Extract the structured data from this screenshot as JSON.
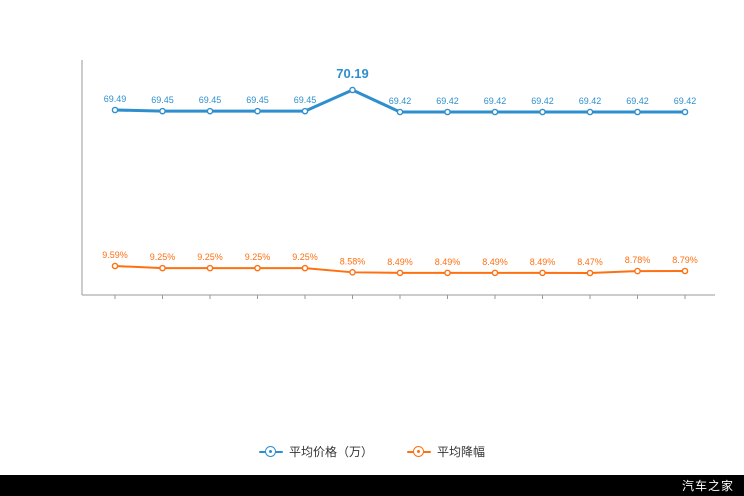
{
  "chart_data": {
    "type": "line",
    "title": "",
    "xlabel": "",
    "ylabel": "",
    "grid": false,
    "legend_position": "bottom",
    "series": [
      {
        "name": "平均价格（万）",
        "color": "#2f8fce",
        "values": [
          69.49,
          69.45,
          69.45,
          69.45,
          69.45,
          70.19,
          69.42,
          69.42,
          69.42,
          69.42,
          69.42,
          69.42,
          69.42
        ],
        "labels": [
          "69.49",
          "69.45",
          "69.45",
          "69.45",
          "69.45",
          "70.19",
          "69.42",
          "69.42",
          "69.42",
          "69.42",
          "69.42",
          "69.42",
          "69.42"
        ]
      },
      {
        "name": "平均降幅",
        "color": "#ff7011",
        "values": [
          9.59,
          9.25,
          9.25,
          9.25,
          9.25,
          8.58,
          8.49,
          8.49,
          8.49,
          8.49,
          8.47,
          8.78,
          8.79
        ],
        "labels": [
          "9.59%",
          "9.25%",
          "9.25%",
          "9.25%",
          "9.25%",
          "8.58%",
          "8.49%",
          "8.49%",
          "8.49%",
          "8.49%",
          "8.47%",
          "8.78%",
          "8.79%"
        ]
      }
    ]
  },
  "legend": {
    "items": [
      {
        "label": "平均价格（万）",
        "color": "#2f8fce"
      },
      {
        "label": "平均降幅",
        "color": "#ff7011"
      }
    ]
  },
  "watermark": {
    "text": "汽车之家",
    "bg": "#000000",
    "color": "#ffffff"
  },
  "axis": {
    "color": "#999999"
  }
}
